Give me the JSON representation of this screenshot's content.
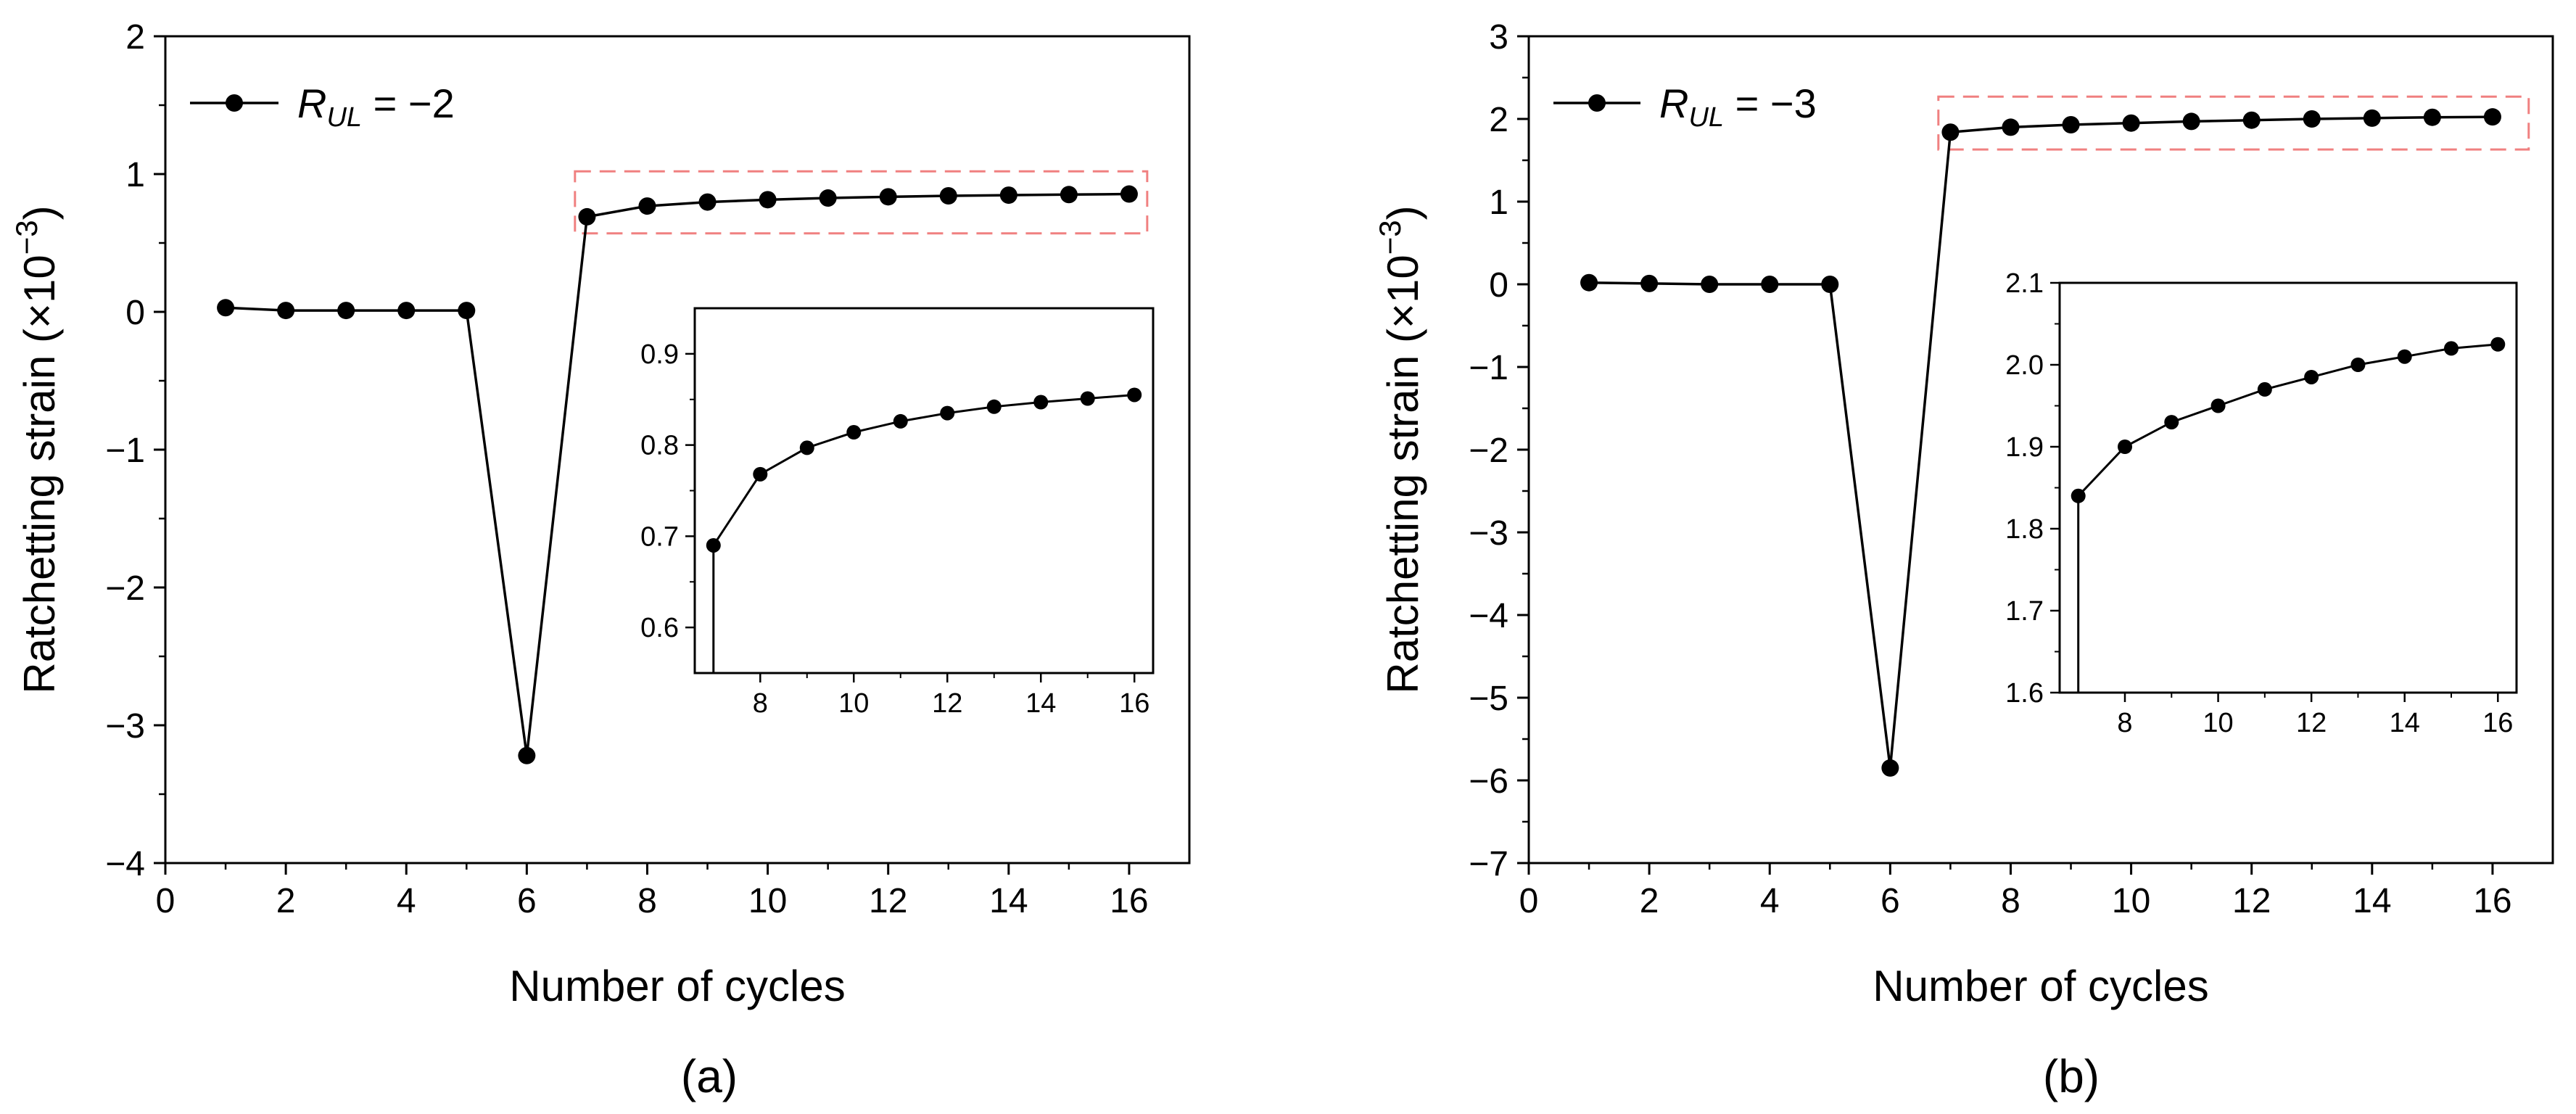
{
  "chart_data": [
    {
      "panel": "(a)",
      "type": "line",
      "xlabel": "Number of cycles",
      "ylabel": "Ratchetting strain (×10",
      "ylabel_exponent": "−3",
      "ylabel_close": ")",
      "xlim": [
        0,
        17
      ],
      "ylim": [
        -4,
        2
      ],
      "xticks": [
        0,
        2,
        4,
        6,
        8,
        10,
        12,
        14,
        16
      ],
      "xtick_labels": [
        "0",
        "2",
        "4",
        "6",
        "8",
        "10",
        "12",
        "14",
        "16"
      ],
      "yticks": [
        -4,
        -3,
        -2,
        -1,
        0,
        1,
        2
      ],
      "ytick_labels": [
        "−4",
        "−3",
        "−2",
        "−1",
        "0",
        "1",
        "2"
      ],
      "legend": {
        "placement": "top-left",
        "symbol": "R",
        "subscript": "UL",
        "equals": " = ",
        "value_text": "−2"
      },
      "series": [
        {
          "name": "R_UL = -2",
          "x": [
            1,
            2,
            3,
            4,
            5,
            6,
            7,
            8,
            9,
            10,
            11,
            12,
            13,
            14,
            15,
            16
          ],
          "y": [
            0.03,
            0.01,
            0.01,
            0.01,
            0.01,
            -3.22,
            0.69,
            0.768,
            0.797,
            0.814,
            0.826,
            0.835,
            0.842,
            0.847,
            0.851,
            0.855
          ]
        }
      ],
      "highlight_box": {
        "x_range": [
          6.8,
          16.3
        ],
        "y_range": [
          0.57,
          1.02
        ],
        "color": "#f08080",
        "style": "dashed"
      },
      "inset": {
        "xlim": [
          6.6,
          16.4
        ],
        "ylim": [
          0.55,
          0.95
        ],
        "xticks": [
          8,
          10,
          12,
          14,
          16
        ],
        "xtick_labels": [
          "8",
          "10",
          "12",
          "14",
          "16"
        ],
        "yticks": [
          0.6,
          0.7,
          0.8,
          0.9
        ],
        "ytick_labels": [
          "0.6",
          "0.7",
          "0.8",
          "0.9"
        ]
      }
    },
    {
      "panel": "(b)",
      "type": "line",
      "xlabel": "Number of cycles",
      "ylabel": "Ratchetting strain (×10",
      "ylabel_exponent": "−3",
      "ylabel_close": ")",
      "xlim": [
        0,
        17
      ],
      "ylim": [
        -7,
        3
      ],
      "xticks": [
        0,
        2,
        4,
        6,
        8,
        10,
        12,
        14,
        16
      ],
      "xtick_labels": [
        "0",
        "2",
        "4",
        "6",
        "8",
        "10",
        "12",
        "14",
        "16"
      ],
      "yticks": [
        -7,
        -6,
        -5,
        -4,
        -3,
        -2,
        -1,
        0,
        1,
        2,
        3
      ],
      "ytick_labels": [
        "−7",
        "−6",
        "−5",
        "−4",
        "−3",
        "−2",
        "−1",
        "0",
        "1",
        "2",
        "3"
      ],
      "legend": {
        "placement": "top-left",
        "symbol": "R",
        "subscript": "UL",
        "equals": " = ",
        "value_text": "−3"
      },
      "series": [
        {
          "name": "R_UL = -3",
          "x": [
            1,
            2,
            3,
            4,
            5,
            6,
            7,
            8,
            9,
            10,
            11,
            12,
            13,
            14,
            15,
            16
          ],
          "y": [
            0.02,
            0.01,
            0.0,
            0.0,
            0.0,
            -5.85,
            1.84,
            1.9,
            1.93,
            1.95,
            1.97,
            1.985,
            2.0,
            2.01,
            2.02,
            2.025
          ]
        }
      ],
      "highlight_box": {
        "x_range": [
          6.8,
          16.6
        ],
        "y_range": [
          1.63,
          2.27
        ],
        "color": "#f08080",
        "style": "dashed"
      },
      "inset": {
        "xlim": [
          6.6,
          16.4
        ],
        "ylim": [
          1.6,
          2.1
        ],
        "xticks": [
          8,
          10,
          12,
          14,
          16
        ],
        "xtick_labels": [
          "8",
          "10",
          "12",
          "14",
          "16"
        ],
        "yticks": [
          1.6,
          1.7,
          1.8,
          1.9,
          2.0,
          2.1
        ],
        "ytick_labels": [
          "1.6",
          "1.7",
          "1.8",
          "1.9",
          "2.0",
          "2.1"
        ]
      }
    }
  ]
}
